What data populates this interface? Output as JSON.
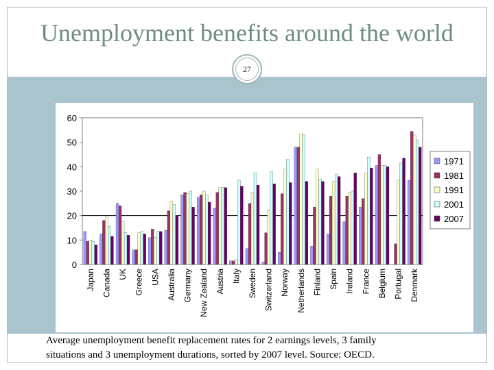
{
  "slide": {
    "title": "Unemployment benefits around the world",
    "slide_number": "27",
    "caption_line1": "Average unemployment benefit replacement rates for 2 earnings levels, 3 family",
    "caption_line2": "situations and 3 unemployment durations, sorted by 2007 level. Source: OECD."
  },
  "colors": {
    "title": "#6e8b86",
    "band": "#a9c4cc",
    "s1971": "#9999ff",
    "s1981": "#993366",
    "s1991": "#ffffcc",
    "s2001": "#ccffff",
    "s2007": "#660066"
  },
  "chart_data": {
    "type": "bar",
    "title": "",
    "xlabel": "",
    "ylabel": "",
    "ylim": [
      0,
      60
    ],
    "yticks": [
      "0",
      "10",
      "20",
      "30",
      "40",
      "50",
      "60"
    ],
    "legend_position": "right",
    "reference_line": 20,
    "categories": [
      "Japan",
      "Canada",
      "UK",
      "Greece",
      "USA",
      "Australia",
      "Germany",
      "New Zealand",
      "Austria",
      "Italy",
      "Sweden",
      "Switzerland",
      "Norway",
      "Netherlands",
      "Finland",
      "Spain",
      "Ireland",
      "France",
      "Belgium",
      "Portugal",
      "Denmark"
    ],
    "series": [
      {
        "name": "1971",
        "values": [
          13.5,
          12.5,
          25,
          6,
          11,
          14,
          28.5,
          27.5,
          23,
          1.5,
          6.5,
          1,
          5,
          48,
          7.5,
          12.5,
          17.5,
          23.5,
          40.5,
          0,
          34.5
        ]
      },
      {
        "name": "1981",
        "values": [
          9.5,
          18,
          24,
          6,
          14.5,
          22,
          29.5,
          28.5,
          29.5,
          1.5,
          25,
          13,
          29,
          48,
          23.5,
          28,
          28,
          27,
          45,
          8.5,
          54.5
        ]
      },
      {
        "name": "1991",
        "values": [
          10,
          19.5,
          17.5,
          13,
          11,
          26,
          29,
          30,
          31.5,
          2,
          29.5,
          22,
          39,
          53.5,
          39,
          34,
          29.5,
          37.5,
          40.5,
          34.5,
          53
        ]
      },
      {
        "name": "2001",
        "values": [
          9.5,
          15.5,
          13,
          13.5,
          13.5,
          24.5,
          30,
          28.5,
          31.5,
          34.5,
          37.5,
          38,
          43,
          53,
          35,
          37,
          30,
          44,
          40.5,
          41.5,
          51
        ]
      },
      {
        "name": "2007",
        "values": [
          8,
          11.5,
          12,
          12.5,
          13.5,
          20,
          23.5,
          25.5,
          31.5,
          32,
          32.5,
          33,
          33.5,
          34,
          34,
          36,
          37.5,
          39.5,
          40,
          43.5,
          48
        ]
      }
    ]
  }
}
